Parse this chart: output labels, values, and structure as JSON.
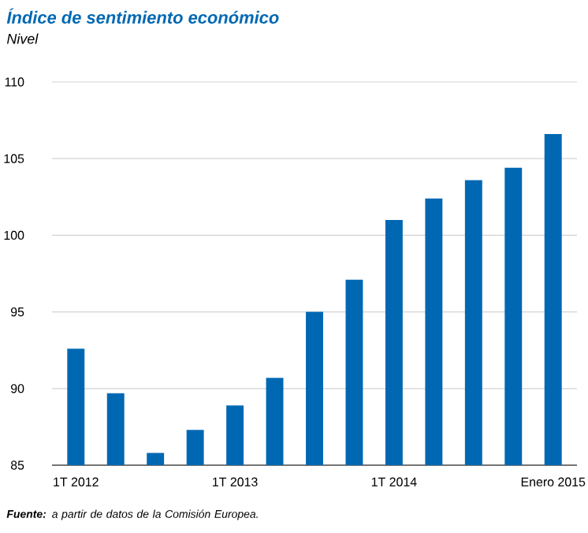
{
  "chart_data": {
    "type": "bar",
    "title": "Índice de sentimiento económico",
    "subtitle": "Nivel",
    "categories": [
      "1T 2012",
      null,
      null,
      null,
      "1T 2013",
      null,
      null,
      null,
      "1T 2014",
      null,
      null,
      null,
      "Enero 2015"
    ],
    "values": [
      92.6,
      89.7,
      85.8,
      87.3,
      88.9,
      90.7,
      95.0,
      97.1,
      101.0,
      102.4,
      103.6,
      104.4,
      106.6
    ],
    "color": "#0068b3",
    "ylim": [
      85,
      110
    ],
    "yticks": [
      85,
      90,
      95,
      100,
      105,
      110
    ],
    "grid": "y",
    "annotations": [
      "**Fuente:** a partir de datos de la Comisión Europea."
    ]
  }
}
